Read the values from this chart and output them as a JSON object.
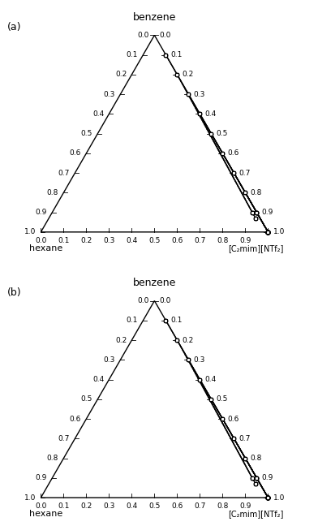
{
  "panel_a": {
    "label": "(a)",
    "title": "benzene",
    "xlabel": "hexane",
    "ylabel": "[C₂mim][NTf₂]",
    "exp_tie_lines": [
      {
        "L": [
          0.0,
          0.9,
          0.1
        ],
        "R": [
          0.0,
          0.1,
          0.9
        ]
      },
      {
        "L": [
          0.0,
          0.8,
          0.2
        ],
        "R": [
          0.02,
          0.1,
          0.88
        ]
      },
      {
        "L": [
          0.0,
          0.7,
          0.3
        ],
        "R": [
          0.02,
          0.07,
          0.91
        ]
      },
      {
        "L": [
          0.0,
          0.6,
          0.4
        ],
        "R": [
          0.0,
          0.0,
          1.0
        ]
      },
      {
        "L": [
          0.0,
          0.5,
          0.5
        ],
        "R": [
          0.0,
          0.0,
          1.0
        ]
      },
      {
        "L": [
          0.0,
          0.4,
          0.6
        ],
        "R": [
          0.0,
          0.0,
          1.0
        ]
      },
      {
        "L": [
          0.0,
          0.3,
          0.7
        ],
        "R": [
          0.0,
          0.0,
          1.0
        ]
      },
      {
        "L": [
          0.0,
          0.2,
          0.8
        ],
        "R": [
          0.0,
          0.0,
          1.0
        ]
      },
      {
        "L": [
          0.0,
          0.1,
          0.9
        ],
        "R": [
          0.0,
          0.0,
          1.0
        ]
      },
      {
        "L": [
          0.0,
          0.0,
          1.0
        ],
        "R": [
          0.0,
          0.0,
          1.0
        ]
      }
    ],
    "nrtl_tie_lines": [
      {
        "L": [
          0.0,
          0.9,
          0.1
        ],
        "R": [
          0.0,
          0.1,
          0.9
        ]
      },
      {
        "L": [
          0.0,
          0.8,
          0.2
        ],
        "R": [
          0.02,
          0.1,
          0.88
        ]
      },
      {
        "L": [
          0.0,
          0.7,
          0.3
        ],
        "R": [
          0.02,
          0.07,
          0.91
        ]
      },
      {
        "L": [
          0.0,
          0.6,
          0.4
        ],
        "R": [
          0.0,
          0.0,
          1.0
        ]
      },
      {
        "L": [
          0.0,
          0.5,
          0.5
        ],
        "R": [
          0.0,
          0.0,
          1.0
        ]
      },
      {
        "L": [
          0.0,
          0.4,
          0.6
        ],
        "R": [
          0.0,
          0.0,
          1.0
        ]
      },
      {
        "L": [
          0.0,
          0.3,
          0.7
        ],
        "R": [
          0.0,
          0.0,
          1.0
        ]
      },
      {
        "L": [
          0.0,
          0.2,
          0.8
        ],
        "R": [
          0.0,
          0.0,
          1.0
        ]
      },
      {
        "L": [
          0.0,
          0.1,
          0.9
        ],
        "R": [
          0.0,
          0.0,
          1.0
        ]
      },
      {
        "L": [
          0.0,
          0.0,
          1.0
        ],
        "R": [
          0.0,
          0.0,
          1.0
        ]
      }
    ]
  },
  "panel_b": {
    "label": "(b)",
    "title": "benzene",
    "xlabel": "hexane",
    "ylabel": "[C₂mim][NTf₂]",
    "exp_tie_lines": [
      {
        "L": [
          0.0,
          0.9,
          0.1
        ],
        "R": [
          0.0,
          0.1,
          0.9
        ]
      },
      {
        "L": [
          0.0,
          0.8,
          0.2
        ],
        "R": [
          0.02,
          0.1,
          0.88
        ]
      },
      {
        "L": [
          0.0,
          0.7,
          0.3
        ],
        "R": [
          0.02,
          0.07,
          0.91
        ]
      },
      {
        "L": [
          0.0,
          0.6,
          0.4
        ],
        "R": [
          0.0,
          0.0,
          1.0
        ]
      },
      {
        "L": [
          0.0,
          0.5,
          0.5
        ],
        "R": [
          0.0,
          0.0,
          1.0
        ]
      },
      {
        "L": [
          0.0,
          0.4,
          0.6
        ],
        "R": [
          0.0,
          0.0,
          1.0
        ]
      },
      {
        "L": [
          0.0,
          0.3,
          0.7
        ],
        "R": [
          0.0,
          0.0,
          1.0
        ]
      },
      {
        "L": [
          0.0,
          0.2,
          0.8
        ],
        "R": [
          0.0,
          0.0,
          1.0
        ]
      },
      {
        "L": [
          0.0,
          0.1,
          0.9
        ],
        "R": [
          0.0,
          0.0,
          1.0
        ]
      }
    ],
    "nrtl_tie_lines": [
      {
        "L": [
          0.0,
          0.9,
          0.1
        ],
        "R": [
          0.0,
          0.1,
          0.9
        ]
      },
      {
        "L": [
          0.0,
          0.8,
          0.2
        ],
        "R": [
          0.02,
          0.1,
          0.88
        ]
      },
      {
        "L": [
          0.0,
          0.7,
          0.3
        ],
        "R": [
          0.02,
          0.07,
          0.91
        ]
      },
      {
        "L": [
          0.0,
          0.6,
          0.4
        ],
        "R": [
          0.0,
          0.0,
          1.0
        ]
      },
      {
        "L": [
          0.0,
          0.5,
          0.5
        ],
        "R": [
          0.0,
          0.0,
          1.0
        ]
      },
      {
        "L": [
          0.0,
          0.4,
          0.6
        ],
        "R": [
          0.0,
          0.0,
          1.0
        ]
      },
      {
        "L": [
          0.0,
          0.3,
          0.7
        ],
        "R": [
          0.0,
          0.0,
          1.0
        ]
      },
      {
        "L": [
          0.0,
          0.2,
          0.8
        ],
        "R": [
          0.0,
          0.0,
          1.0
        ]
      },
      {
        "L": [
          0.0,
          0.1,
          0.9
        ],
        "R": [
          0.0,
          0.0,
          1.0
        ]
      }
    ]
  },
  "tick_vals": [
    0.0,
    0.1,
    0.2,
    0.3,
    0.4,
    0.5,
    0.6,
    0.7,
    0.8,
    0.9,
    1.0
  ],
  "bg_color": "#ffffff"
}
